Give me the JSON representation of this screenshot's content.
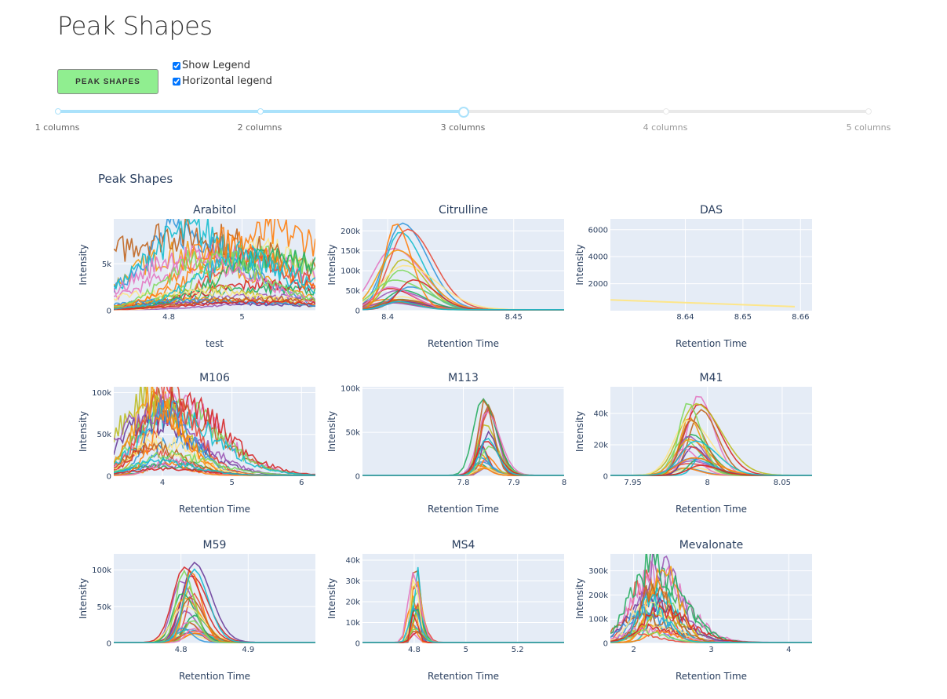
{
  "page": {
    "title": "Peak Shapes",
    "button_label": "PEAK SHAPES",
    "options": {
      "show_legend": "Show Legend",
      "horizontal_legend": "Horizontal legend"
    }
  },
  "slider": {
    "marks": [
      "1 columns",
      "2 columns",
      "3 columns",
      "4 columns",
      "5 columns"
    ],
    "value": 3
  },
  "figure": {
    "title": "Peak Shapes"
  },
  "chart_data": [
    {
      "type": "line",
      "title": "Arabitol",
      "xlabel": "test",
      "ylabel": "Intensity",
      "xlim": [
        4.65,
        5.2
      ],
      "ylim": [
        0,
        9800
      ],
      "xticks": [
        4.8,
        5
      ],
      "yticks": [
        0,
        5000
      ],
      "ytick_labels": [
        "0",
        "5k"
      ],
      "peak_x": 4.95,
      "peak_y": 9000,
      "width": 0.3,
      "noisy": true
    },
    {
      "type": "line",
      "title": "Citrulline",
      "xlabel": "Retention Time",
      "ylabel": "Intensity",
      "xlim": [
        8.39,
        8.47
      ],
      "ylim": [
        0,
        230000
      ],
      "xticks": [
        8.4,
        8.45
      ],
      "yticks": [
        0,
        50000,
        100000,
        150000,
        200000
      ],
      "ytick_labels": [
        "0",
        "50k",
        "100k",
        "150k",
        "200k"
      ],
      "peak_x": 8.405,
      "peak_y": 220000,
      "width": 0.012,
      "noisy": false
    },
    {
      "type": "line",
      "title": "DAS",
      "xlabel": "Retention Time",
      "ylabel": "Intensity",
      "xlim": [
        8.627,
        8.662
      ],
      "ylim": [
        0,
        6800
      ],
      "xticks": [
        8.64,
        8.65,
        8.66
      ],
      "yticks": [
        2000,
        4000,
        6000
      ],
      "ytick_labels": [
        "2000",
        "4000",
        "6000"
      ],
      "single_line": {
        "x": [
          8.627,
          8.659
        ],
        "y": [
          800,
          300
        ],
        "color": "#fde68a"
      }
    },
    {
      "type": "line",
      "title": "M106",
      "xlabel": "Retention Time",
      "ylabel": "Intensity",
      "xlim": [
        3.3,
        6.2
      ],
      "ylim": [
        0,
        107000
      ],
      "xticks": [
        4,
        5,
        6
      ],
      "yticks": [
        0,
        50000,
        100000
      ],
      "ytick_labels": [
        "0",
        "50k",
        "100k"
      ],
      "peak_x": 4.0,
      "peak_y": 100000,
      "width": 0.6,
      "noisy": true
    },
    {
      "type": "line",
      "title": "M113",
      "xlabel": "Retention Time",
      "ylabel": "Intensity",
      "xlim": [
        7.6,
        8.0
      ],
      "ylim": [
        0,
        102000
      ],
      "xticks": [
        7.8,
        7.9,
        8
      ],
      "yticks": [
        0,
        50000,
        100000
      ],
      "ytick_labels": [
        "0",
        "50k",
        "100k"
      ],
      "peak_x": 7.84,
      "peak_y": 95000,
      "width": 0.025,
      "noisy": false
    },
    {
      "type": "line",
      "title": "M41",
      "xlabel": "Retention Time",
      "ylabel": "Intensity",
      "xlim": [
        7.935,
        8.07
      ],
      "ylim": [
        0,
        57000
      ],
      "xticks": [
        7.95,
        8,
        8.05
      ],
      "yticks": [
        0,
        20000,
        40000
      ],
      "ytick_labels": [
        "0",
        "20k",
        "40k"
      ],
      "peak_x": 7.99,
      "peak_y": 53000,
      "width": 0.015,
      "noisy": false
    },
    {
      "type": "line",
      "title": "M59",
      "xlabel": "Retention Time",
      "ylabel": "Intensity",
      "xlim": [
        4.7,
        5.0
      ],
      "ylim": [
        0,
        122000
      ],
      "xticks": [
        4.8,
        4.9
      ],
      "yticks": [
        0,
        50000,
        100000
      ],
      "ytick_labels": [
        "0",
        "50k",
        "100k"
      ],
      "peak_x": 4.81,
      "peak_y": 112000,
      "width": 0.025,
      "noisy": false
    },
    {
      "type": "line",
      "title": "MS4",
      "xlabel": "Retention Time",
      "ylabel": "Intensity",
      "xlim": [
        4.6,
        5.38
      ],
      "ylim": [
        0,
        43000
      ],
      "xticks": [
        4.8,
        5,
        5.2
      ],
      "yticks": [
        0,
        10000,
        20000,
        30000,
        40000
      ],
      "ytick_labels": [
        "0",
        "10k",
        "20k",
        "30k",
        "40k"
      ],
      "peak_x": 4.8,
      "peak_y": 41000,
      "width": 0.025,
      "noisy": false
    },
    {
      "type": "line",
      "title": "Mevalonate",
      "xlabel": "Retention Time",
      "ylabel": "Intensity",
      "xlim": [
        1.7,
        4.3
      ],
      "ylim": [
        0,
        370000
      ],
      "xticks": [
        2,
        3,
        4
      ],
      "yticks": [
        0,
        100000,
        200000,
        300000
      ],
      "ytick_labels": [
        "0",
        "100k",
        "200k",
        "300k"
      ],
      "peak_x": 2.2,
      "peak_y": 340000,
      "width": 0.35,
      "noisy": true
    }
  ],
  "colors": [
    "#9b59b6",
    "#e74c3c",
    "#f39c12",
    "#27ae60",
    "#3498db",
    "#fde68a",
    "#e377c2",
    "#ff7f0e",
    "#c0651f",
    "#7fd85f",
    "#d62728",
    "#17becf",
    "#bcbd22",
    "#6a3d9a"
  ]
}
